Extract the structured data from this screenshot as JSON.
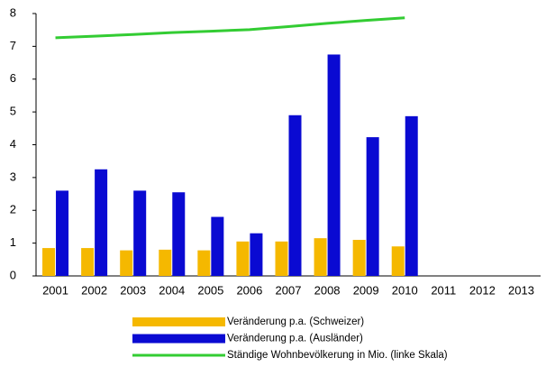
{
  "chart_data": {
    "type": "bar-line",
    "categories": [
      "2001",
      "2002",
      "2003",
      "2004",
      "2005",
      "2006",
      "2007",
      "2008",
      "2009",
      "2010",
      "2011",
      "2012",
      "2013"
    ],
    "series": [
      {
        "name": "Veränderung p.a. (Schweizer)",
        "type": "bar",
        "color": "#f5b800",
        "values": [
          0.85,
          0.85,
          0.78,
          0.8,
          0.78,
          1.05,
          1.05,
          1.15,
          1.1,
          0.9,
          null,
          null,
          null
        ]
      },
      {
        "name": "Veränderung p.a. (Ausländer)",
        "type": "bar",
        "color": "#0a0ad2",
        "values": [
          2.6,
          3.25,
          2.6,
          2.55,
          1.8,
          1.3,
          4.9,
          6.75,
          4.23,
          4.87,
          null,
          null,
          null
        ]
      },
      {
        "name": "Ständige Wohnbevölkerung in Mio. (linke Skala)",
        "type": "line",
        "color": "#33cc33",
        "values": [
          7.26,
          7.31,
          7.36,
          7.42,
          7.46,
          7.51,
          7.6,
          7.7,
          7.79,
          7.87,
          null,
          null,
          null
        ]
      }
    ],
    "ylim": [
      0,
      8
    ],
    "yticks": [
      0,
      1,
      2,
      3,
      4,
      5,
      6,
      7,
      8
    ],
    "grid": false
  }
}
